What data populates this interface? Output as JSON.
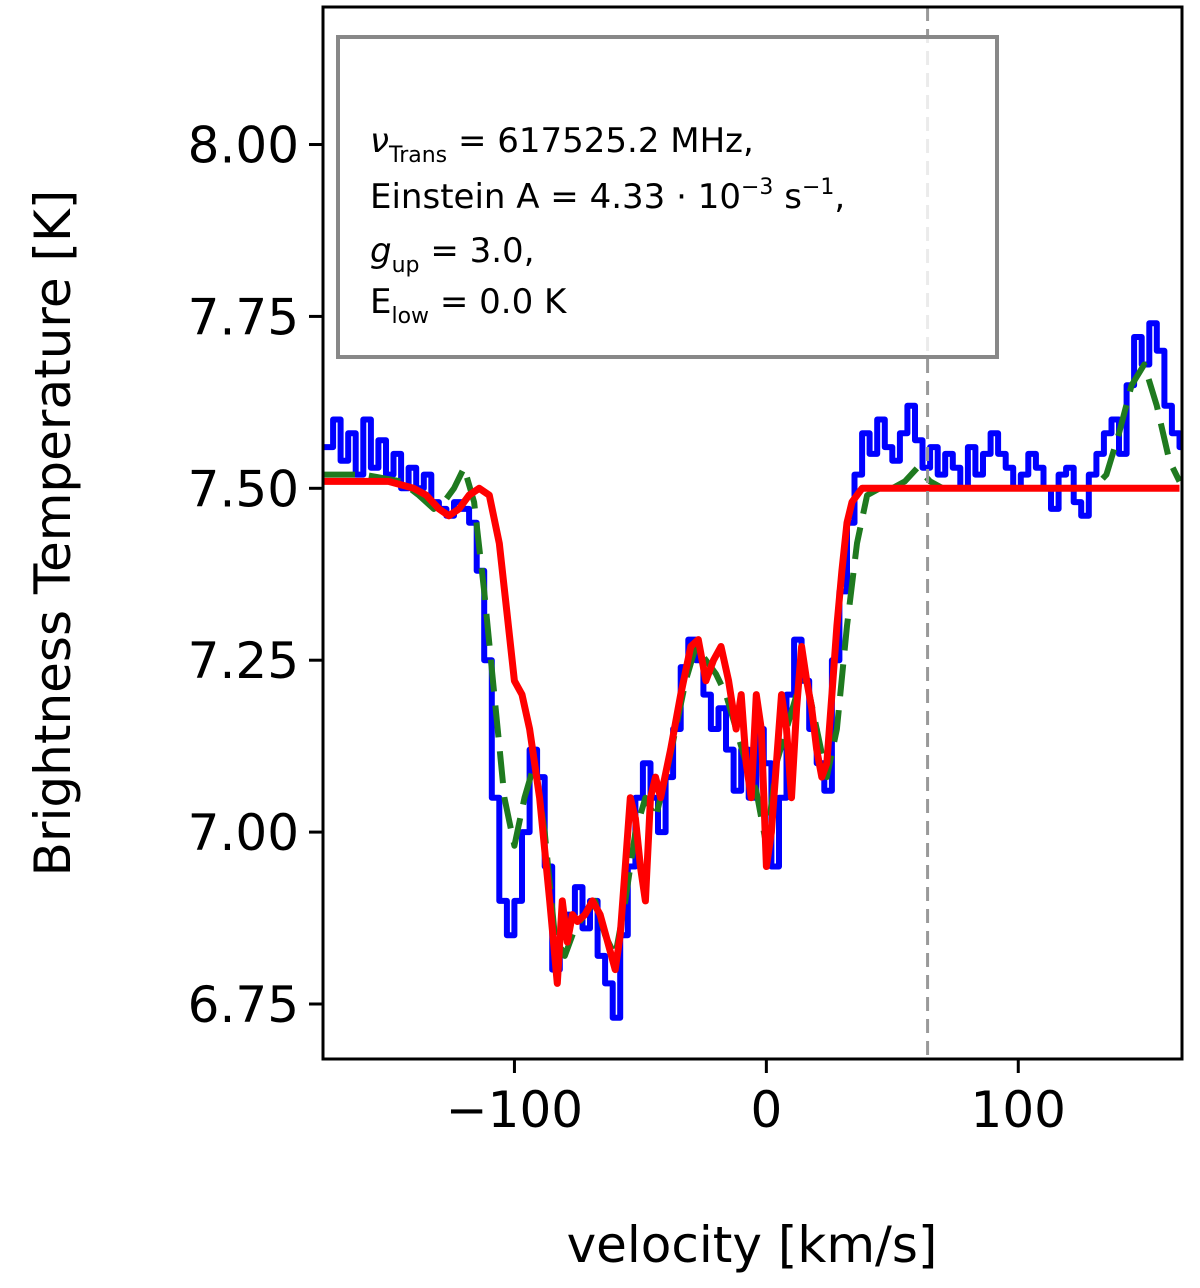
{
  "chart_data": {
    "type": "line",
    "title": "",
    "xlabel": "velocity [km/s]",
    "ylabel": "Brightness Temperature [K]",
    "xlim": [
      -176,
      165
    ],
    "ylim": [
      6.67,
      8.2
    ],
    "xticks": [
      -100,
      0,
      100
    ],
    "xtick_labels": [
      "−100",
      "0",
      "100"
    ],
    "yticks": [
      6.75,
      7.0,
      7.25,
      7.5,
      7.75,
      8.0
    ],
    "ytick_labels": [
      "6.75",
      "7.00",
      "7.25",
      "7.50",
      "7.75",
      "8.00"
    ],
    "grid": false,
    "legend_position": "top-left",
    "vline": {
      "x": 64,
      "color": "#999999",
      "style": "dashed"
    },
    "annotation_lines": [
      {
        "main": "ν",
        "sub": "Trans",
        "tail": " = 617525.2 MHz,"
      },
      {
        "main": "Einstein A = 4.33 · 10",
        "sup": "−3",
        "tail": " s",
        "sup2": "−1",
        "tail2": ","
      },
      {
        "main": "g",
        "sub": "up",
        "tail": " = 3.0,"
      },
      {
        "main": "E",
        "sub": "low",
        "tail": " = 0.0 K"
      }
    ],
    "series": [
      {
        "color": "#0000ff",
        "style": "steps",
        "x": [
          -176,
          -172,
          -169,
          -166,
          -163,
          -160,
          -157,
          -154,
          -151,
          -148,
          -145,
          -142,
          -139,
          -136,
          -133,
          -130,
          -127,
          -124,
          -121,
          -118,
          -115,
          -112,
          -109,
          -106,
          -103,
          -100,
          -97,
          -94,
          -91,
          -88,
          -85,
          -82,
          -79,
          -76,
          -73,
          -70,
          -67,
          -64,
          -61,
          -58,
          -55,
          -52,
          -49,
          -46,
          -43,
          -40,
          -37,
          -34,
          -31,
          -28,
          -25,
          -22,
          -19,
          -16,
          -13,
          -10,
          -7,
          -4,
          -1,
          2,
          5,
          8,
          11,
          14,
          17,
          20,
          23,
          26,
          29,
          32,
          35,
          38,
          41,
          44,
          47,
          50,
          53,
          56,
          59,
          62,
          65,
          68,
          71,
          74,
          77,
          80,
          83,
          86,
          89,
          92,
          95,
          98,
          101,
          104,
          107,
          110,
          113,
          116,
          119,
          122,
          125,
          128,
          131,
          134,
          137,
          140,
          143,
          146,
          149,
          152,
          155,
          158,
          161,
          164
        ],
        "values": [
          7.56,
          7.6,
          7.54,
          7.58,
          7.52,
          7.6,
          7.53,
          7.57,
          7.52,
          7.55,
          7.5,
          7.53,
          7.5,
          7.52,
          7.48,
          7.47,
          7.46,
          7.48,
          7.47,
          7.45,
          7.38,
          7.25,
          7.05,
          6.9,
          6.85,
          6.9,
          7.0,
          7.12,
          7.08,
          6.95,
          6.8,
          6.85,
          6.88,
          6.92,
          6.86,
          6.9,
          6.82,
          6.78,
          6.73,
          6.85,
          6.95,
          7.05,
          7.1,
          7.05,
          7.0,
          7.08,
          7.15,
          7.24,
          7.28,
          7.25,
          7.2,
          7.15,
          7.18,
          7.12,
          7.06,
          7.12,
          7.05,
          7.15,
          7.1,
          6.95,
          7.05,
          7.2,
          7.28,
          7.22,
          7.15,
          7.1,
          7.06,
          7.25,
          7.35,
          7.45,
          7.52,
          7.58,
          7.55,
          7.6,
          7.56,
          7.54,
          7.58,
          7.62,
          7.57,
          7.53,
          7.56,
          7.52,
          7.55,
          7.53,
          7.5,
          7.56,
          7.52,
          7.55,
          7.58,
          7.55,
          7.53,
          7.5,
          7.52,
          7.55,
          7.53,
          7.5,
          7.47,
          7.52,
          7.53,
          7.48,
          7.46,
          7.52,
          7.55,
          7.58,
          7.6,
          7.55,
          7.65,
          7.72,
          7.68,
          7.74,
          7.7,
          7.62,
          7.58,
          7.56
        ]
      },
      {
        "color": "#1f7a1f",
        "style": "dashed",
        "x": [
          -176,
          -160,
          -145,
          -138,
          -132,
          -128,
          -124,
          -120,
          -116,
          -112,
          -108,
          -104,
          -100,
          -96,
          -92,
          -88,
          -84,
          -80,
          -76,
          -72,
          -68,
          -64,
          -60,
          -56,
          -52,
          -48,
          -44,
          -40,
          -36,
          -32,
          -28,
          -24,
          -20,
          -16,
          -12,
          -8,
          -4,
          0,
          4,
          8,
          12,
          16,
          20,
          24,
          28,
          32,
          36,
          40,
          45,
          50,
          55,
          60,
          65,
          70,
          80,
          90,
          100,
          110,
          120,
          130,
          135,
          140,
          145,
          150,
          155,
          160,
          164
        ],
        "values": [
          7.52,
          7.52,
          7.51,
          7.49,
          7.47,
          7.48,
          7.5,
          7.53,
          7.48,
          7.35,
          7.2,
          7.05,
          6.98,
          7.05,
          7.1,
          7.0,
          6.85,
          6.82,
          6.86,
          6.88,
          6.9,
          6.85,
          6.82,
          6.9,
          7.0,
          7.05,
          7.02,
          7.08,
          7.15,
          7.22,
          7.27,
          7.25,
          7.23,
          7.2,
          7.15,
          7.1,
          7.06,
          6.98,
          7.1,
          7.15,
          7.2,
          7.22,
          7.15,
          7.08,
          7.15,
          7.3,
          7.42,
          7.49,
          7.5,
          7.5,
          7.51,
          7.53,
          7.51,
          7.5,
          7.5,
          7.5,
          7.5,
          7.5,
          7.5,
          7.5,
          7.52,
          7.58,
          7.65,
          7.68,
          7.62,
          7.54,
          7.51
        ]
      },
      {
        "color": "#ff0000",
        "style": "solid",
        "x": [
          -176,
          -150,
          -140,
          -135,
          -130,
          -126,
          -122,
          -118,
          -114,
          -110,
          -106,
          -103,
          -100,
          -97,
          -94,
          -90,
          -86,
          -83,
          -81,
          -79,
          -77,
          -75,
          -72,
          -69,
          -66,
          -63,
          -60,
          -58,
          -56,
          -54,
          -52,
          -50,
          -48,
          -46,
          -44,
          -42,
          -38,
          -34,
          -30,
          -27,
          -24,
          -21,
          -18,
          -15,
          -12,
          -10,
          -8,
          -6,
          -4,
          -2,
          0,
          2,
          4,
          6,
          8,
          10,
          12,
          14,
          16,
          18,
          20,
          22,
          24,
          26,
          28,
          30,
          32,
          34,
          38,
          45,
          60,
          80,
          100,
          130,
          164
        ],
        "values": [
          7.51,
          7.51,
          7.5,
          7.49,
          7.47,
          7.46,
          7.47,
          7.49,
          7.5,
          7.49,
          7.42,
          7.32,
          7.22,
          7.2,
          7.15,
          7.05,
          6.9,
          6.78,
          6.9,
          6.84,
          6.88,
          6.87,
          6.88,
          6.9,
          6.88,
          6.84,
          6.8,
          6.85,
          6.95,
          7.05,
          7.02,
          6.95,
          6.9,
          7.05,
          7.08,
          7.05,
          7.12,
          7.2,
          7.27,
          7.28,
          7.22,
          7.25,
          7.27,
          7.22,
          7.15,
          7.2,
          7.1,
          7.05,
          7.2,
          7.15,
          6.95,
          7.0,
          7.1,
          7.2,
          7.15,
          7.05,
          7.18,
          7.27,
          7.22,
          7.18,
          7.12,
          7.08,
          7.1,
          7.2,
          7.3,
          7.38,
          7.45,
          7.48,
          7.5,
          7.5,
          7.5,
          7.5,
          7.5,
          7.5,
          7.5
        ]
      }
    ]
  }
}
